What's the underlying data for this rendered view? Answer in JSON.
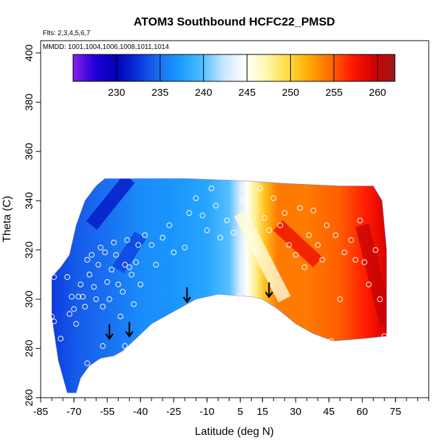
{
  "chart_data": {
    "type": "heatmap",
    "title": "ATOM3 Southbound HCFC22_PMSD",
    "note_flights": "Flts: 2,3,4,5,6,7",
    "note_dates": "MMDD: 1001,1004,1006,1008,1011,1014",
    "xlabel": "Latitude (deg N)",
    "ylabel": "Theta (C)",
    "xlim": [
      -85,
      90
    ],
    "ylim": [
      260,
      405
    ],
    "x_tick_labels": [
      "-85",
      "-70",
      "-55",
      "-40",
      "-25",
      "-10",
      "5",
      "15",
      "30",
      "45",
      "60",
      "75"
    ],
    "y_tick_labels": [
      "260",
      "280",
      "300",
      "320",
      "340",
      "360",
      "380",
      "400"
    ],
    "colorbar": {
      "range": [
        225,
        262
      ],
      "tick_labels": [
        "230",
        "235",
        "240",
        "245",
        "250",
        "255",
        "260"
      ],
      "colors": [
        "#8b1fe8",
        "#2200d8",
        "#0000b4",
        "#0a32dc",
        "#1a6ef0",
        "#1a9cff",
        "#4ebcff",
        "#c8e6ff",
        "#ffffff",
        "#fff8b0",
        "#ffdc40",
        "#ffaa00",
        "#ff6a00",
        "#ff1800",
        "#d20000",
        "#9a1a1a"
      ]
    },
    "boundary": [
      [
        -80,
        293
      ],
      [
        -80,
        309
      ],
      [
        -76,
        313
      ],
      [
        -72,
        318
      ],
      [
        -69,
        330
      ],
      [
        -65,
        340
      ],
      [
        -60,
        346
      ],
      [
        -56,
        349
      ],
      [
        -20,
        349
      ],
      [
        8,
        348
      ],
      [
        25,
        347
      ],
      [
        50,
        346
      ],
      [
        65,
        346
      ],
      [
        69,
        340
      ],
      [
        71,
        320
      ],
      [
        71,
        300
      ],
      [
        71,
        285
      ],
      [
        60,
        284
      ],
      [
        47,
        283
      ],
      [
        38,
        286
      ],
      [
        30,
        290
      ],
      [
        22,
        296
      ],
      [
        15,
        300
      ],
      [
        10,
        301
      ],
      [
        -5,
        302
      ],
      [
        -15,
        300
      ],
      [
        -25,
        295
      ],
      [
        -35,
        290
      ],
      [
        -42,
        284
      ],
      [
        -48,
        279
      ],
      [
        -52,
        277
      ],
      [
        -58,
        276
      ],
      [
        -63,
        273
      ],
      [
        -67,
        268
      ],
      [
        -69,
        262
      ],
      [
        -73,
        262
      ],
      [
        -77,
        275
      ]
    ],
    "wedges": [
      {
        "from": [
          -62,
          330
        ],
        "to": [
          -45,
          349
        ],
        "value": 231
      },
      {
        "from": [
          -50,
          312
        ],
        "to": [
          -40,
          326
        ],
        "value": 233
      },
      {
        "from": [
          5,
          335
        ],
        "to": [
          25,
          300
        ],
        "value": 246
      },
      {
        "from": [
          22,
          330
        ],
        "to": [
          40,
          315
        ],
        "value": 258
      },
      {
        "from": [
          60,
          330
        ],
        "to": [
          71,
          290
        ],
        "value": 260
      }
    ],
    "arrows": [
      [
        -54,
        287
      ],
      [
        -45,
        288
      ],
      [
        -19,
        302
      ],
      [
        18,
        304
      ]
    ],
    "points": [
      [
        -79,
        309
      ],
      [
        -80,
        293
      ],
      [
        -79,
        291
      ],
      [
        -76,
        284
      ],
      [
        -73,
        309
      ],
      [
        -72,
        294
      ],
      [
        -71,
        301
      ],
      [
        -70,
        296
      ],
      [
        -69,
        290
      ],
      [
        -68,
        301
      ],
      [
        -67,
        306
      ],
      [
        -66,
        301
      ],
      [
        -65,
        297
      ],
      [
        -64,
        316
      ],
      [
        -63,
        310
      ],
      [
        -62,
        318
      ],
      [
        -61,
        305
      ],
      [
        -60,
        300
      ],
      [
        -59,
        314
      ],
      [
        -58,
        321
      ],
      [
        -57,
        297
      ],
      [
        -56,
        319
      ],
      [
        -55,
        307
      ],
      [
        -54,
        300
      ],
      [
        -53,
        312
      ],
      [
        -52,
        323
      ],
      [
        -51,
        318
      ],
      [
        -50,
        306
      ],
      [
        -49,
        293
      ],
      [
        -48,
        303
      ],
      [
        -47,
        314
      ],
      [
        -46,
        324
      ],
      [
        -45,
        313
      ],
      [
        -44,
        310
      ],
      [
        -43,
        298
      ],
      [
        -42,
        315
      ],
      [
        -41,
        322
      ],
      [
        -40,
        306
      ],
      [
        -38,
        326
      ],
      [
        -35,
        322
      ],
      [
        -33,
        314
      ],
      [
        -30,
        325
      ],
      [
        -27,
        330
      ],
      [
        -25,
        319
      ],
      [
        -20,
        321
      ],
      [
        -18,
        335
      ],
      [
        -15,
        341
      ],
      [
        -12,
        334
      ],
      [
        -10,
        328
      ],
      [
        -8,
        345
      ],
      [
        -6,
        338
      ],
      [
        -4,
        325
      ],
      [
        -1,
        332
      ],
      [
        2,
        327
      ],
      [
        4,
        301
      ],
      [
        6,
        340
      ],
      [
        8,
        333
      ],
      [
        10,
        326
      ],
      [
        12,
        320
      ],
      [
        14,
        345
      ],
      [
        16,
        333
      ],
      [
        18,
        328
      ],
      [
        20,
        341
      ],
      [
        23,
        330
      ],
      [
        25,
        335
      ],
      [
        27,
        322
      ],
      [
        30,
        318
      ],
      [
        32,
        337
      ],
      [
        34,
        313
      ],
      [
        36,
        326
      ],
      [
        38,
        336
      ],
      [
        40,
        322
      ],
      [
        42,
        316
      ],
      [
        44,
        330
      ],
      [
        46,
        283
      ],
      [
        48,
        326
      ],
      [
        50,
        300
      ],
      [
        52,
        319
      ],
      [
        55,
        324
      ],
      [
        57,
        316
      ],
      [
        59,
        332
      ],
      [
        61,
        315
      ],
      [
        63,
        306
      ],
      [
        66,
        320
      ],
      [
        68,
        300
      ],
      [
        70,
        285
      ],
      [
        -57,
        281
      ],
      [
        -64,
        274
      ],
      [
        -47,
        281
      ]
    ]
  }
}
